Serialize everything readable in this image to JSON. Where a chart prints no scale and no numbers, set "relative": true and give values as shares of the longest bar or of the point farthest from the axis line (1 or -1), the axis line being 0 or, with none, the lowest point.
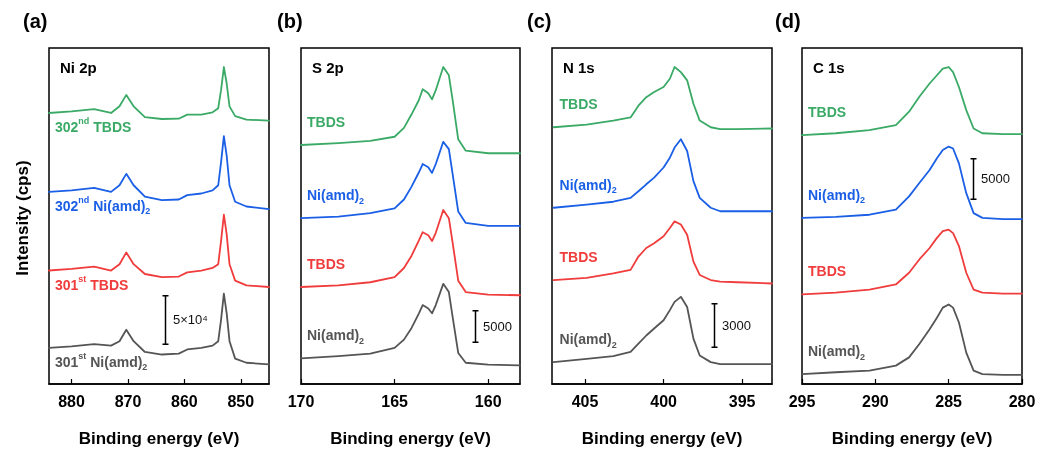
{
  "chart_data": [
    {
      "type": "line",
      "title": "(a)",
      "subtitle": "Ni 2p",
      "xlabel": "Binding energy (eV)",
      "ylabel": "Intensity (cps)",
      "relative": true,
      "xlim": [
        884,
        845
      ],
      "xticks": [
        880,
        870,
        860,
        850
      ],
      "annotations": [
        "5×10⁴"
      ],
      "x": [
        884,
        880,
        876,
        873,
        871.5,
        870.3,
        869,
        867,
        864,
        861,
        859.5,
        857,
        855,
        854,
        853.5,
        853,
        852.5,
        852,
        851,
        849,
        845
      ],
      "series": [
        {
          "name": "302$^{nd}$ TBDS",
          "color": "#3aaa66",
          "values": [
            0.855,
            0.86,
            0.867,
            0.855,
            0.876,
            0.912,
            0.876,
            0.842,
            0.836,
            0.837,
            0.85,
            0.85,
            0.857,
            0.87,
            0.927,
            1.0,
            0.948,
            0.876,
            0.845,
            0.834,
            0.831
          ]
        },
        {
          "name": "302$^{nd}$ Ni(amd)$_{2}$",
          "color": "#1a5fe6",
          "values": [
            0.606,
            0.611,
            0.619,
            0.606,
            0.627,
            0.663,
            0.627,
            0.591,
            0.58,
            0.582,
            0.596,
            0.601,
            0.611,
            0.627,
            0.699,
            0.782,
            0.72,
            0.627,
            0.575,
            0.56,
            0.552
          ]
        },
        {
          "name": "301$^{st}$ TBDS",
          "color": "#f03c3c",
          "values": [
            0.358,
            0.363,
            0.37,
            0.358,
            0.378,
            0.415,
            0.378,
            0.347,
            0.337,
            0.339,
            0.352,
            0.358,
            0.366,
            0.378,
            0.451,
            0.534,
            0.472,
            0.378,
            0.326,
            0.311,
            0.306
          ]
        },
        {
          "name": "301$^{st}$ Ni(amd)$_{2}$",
          "color": "#555555",
          "values": [
            0.114,
            0.119,
            0.126,
            0.121,
            0.135,
            0.171,
            0.135,
            0.101,
            0.093,
            0.096,
            0.109,
            0.114,
            0.121,
            0.135,
            0.202,
            0.285,
            0.223,
            0.135,
            0.08,
            0.067,
            0.062
          ]
        }
      ]
    },
    {
      "type": "line",
      "title": "(b)",
      "subtitle": "S 2p",
      "xlabel": "Binding energy (eV)",
      "relative": true,
      "xlim": [
        170,
        158.3
      ],
      "xticks": [
        170,
        165,
        160
      ],
      "annotations": [
        "5000"
      ],
      "x": [
        170,
        168,
        166.3,
        165,
        164.5,
        164.1,
        163.7,
        163.5,
        163.2,
        163,
        162.8,
        162.4,
        162.1,
        161.9,
        161.6,
        161.2,
        160,
        158.3
      ],
      "series": [
        {
          "name": "TBDS",
          "color": "#3aaa66",
          "values": [
            0.754,
            0.76,
            0.767,
            0.78,
            0.808,
            0.85,
            0.896,
            0.93,
            0.917,
            0.898,
            0.927,
            1.0,
            0.974,
            0.896,
            0.772,
            0.736,
            0.728,
            0.728
          ]
        },
        {
          "name": "Ni(amd)$_{2}$",
          "color": "#1a5fe6",
          "values": [
            0.523,
            0.528,
            0.539,
            0.554,
            0.582,
            0.622,
            0.668,
            0.694,
            0.684,
            0.666,
            0.694,
            0.764,
            0.741,
            0.663,
            0.544,
            0.508,
            0.499,
            0.499
          ]
        },
        {
          "name": "TBDS",
          "color": "#f03c3c",
          "values": [
            0.306,
            0.311,
            0.321,
            0.337,
            0.366,
            0.404,
            0.453,
            0.479,
            0.469,
            0.451,
            0.477,
            0.549,
            0.523,
            0.446,
            0.326,
            0.29,
            0.282,
            0.28
          ]
        },
        {
          "name": "Ni(amd)$_{2}$",
          "color": "#555555",
          "values": [
            0.081,
            0.088,
            0.096,
            0.114,
            0.14,
            0.176,
            0.223,
            0.249,
            0.238,
            0.223,
            0.249,
            0.316,
            0.29,
            0.212,
            0.098,
            0.067,
            0.061,
            0.059
          ]
        }
      ]
    },
    {
      "type": "line",
      "title": "(c)",
      "subtitle": "N 1s",
      "xlabel": "Binding energy (eV)",
      "relative": true,
      "xlim": [
        407.1,
        393.1
      ],
      "xticks": [
        405,
        400,
        395
      ],
      "annotations": [
        "3000"
      ],
      "x": [
        407,
        404.9,
        403.2,
        402.1,
        401.6,
        401.1,
        400.6,
        400,
        399.6,
        399.3,
        398.9,
        398.5,
        398.1,
        397.7,
        397,
        396.4,
        395.3,
        393.1
      ],
      "series": [
        {
          "name": "TBDS",
          "color": "#3aaa66",
          "values": [
            0.81,
            0.818,
            0.831,
            0.841,
            0.878,
            0.905,
            0.921,
            0.937,
            0.963,
            1.0,
            0.984,
            0.958,
            0.884,
            0.831,
            0.81,
            0.804,
            0.804,
            0.806
          ]
        },
        {
          "name": "Ni(amd)$_{2}$",
          "color": "#1a5fe6",
          "values": [
            0.556,
            0.566,
            0.575,
            0.587,
            0.608,
            0.63,
            0.651,
            0.683,
            0.714,
            0.746,
            0.772,
            0.735,
            0.64,
            0.587,
            0.556,
            0.545,
            0.545,
            0.545
          ]
        },
        {
          "name": "TBDS",
          "color": "#f03c3c",
          "values": [
            0.328,
            0.335,
            0.349,
            0.36,
            0.402,
            0.429,
            0.444,
            0.466,
            0.492,
            0.513,
            0.503,
            0.471,
            0.386,
            0.344,
            0.328,
            0.323,
            0.321,
            0.317
          ]
        },
        {
          "name": "Ni(amd)$_{2}$",
          "color": "#555555",
          "values": [
            0.069,
            0.079,
            0.088,
            0.101,
            0.127,
            0.153,
            0.175,
            0.201,
            0.233,
            0.259,
            0.275,
            0.243,
            0.143,
            0.09,
            0.069,
            0.063,
            0.063,
            0.063
          ]
        }
      ]
    },
    {
      "type": "line",
      "title": "(d)",
      "subtitle": "C 1s",
      "xlabel": "Binding energy (eV)",
      "relative": true,
      "xlim": [
        295,
        280
      ],
      "xticks": [
        295,
        290,
        285,
        280
      ],
      "annotations": [
        "5000"
      ],
      "x": [
        295,
        292.7,
        290.4,
        288.6,
        287.7,
        287,
        286.3,
        285.8,
        285.4,
        285,
        284.7,
        284.3,
        283.8,
        283.3,
        282.7,
        281.3,
        280
      ],
      "series": [
        {
          "name": "TBDS",
          "color": "#3aaa66",
          "values": [
            0.785,
            0.791,
            0.801,
            0.817,
            0.859,
            0.906,
            0.948,
            0.974,
            0.995,
            1.0,
            0.984,
            0.937,
            0.864,
            0.806,
            0.791,
            0.788,
            0.788
          ]
        },
        {
          "name": "Ni(amd)$_{2}$",
          "color": "#1a5fe6",
          "values": [
            0.524,
            0.527,
            0.534,
            0.55,
            0.592,
            0.634,
            0.675,
            0.712,
            0.738,
            0.749,
            0.743,
            0.696,
            0.602,
            0.539,
            0.524,
            0.52,
            0.52
          ]
        },
        {
          "name": "TBDS",
          "color": "#f03c3c",
          "values": [
            0.283,
            0.288,
            0.298,
            0.314,
            0.351,
            0.393,
            0.429,
            0.461,
            0.482,
            0.487,
            0.476,
            0.435,
            0.351,
            0.298,
            0.288,
            0.285,
            0.285
          ]
        },
        {
          "name": "Ni(amd)$_{2}$",
          "color": "#555555",
          "values": [
            0.031,
            0.037,
            0.042,
            0.058,
            0.084,
            0.126,
            0.173,
            0.209,
            0.241,
            0.251,
            0.241,
            0.194,
            0.099,
            0.042,
            0.031,
            0.029,
            0.029
          ]
        }
      ]
    }
  ]
}
